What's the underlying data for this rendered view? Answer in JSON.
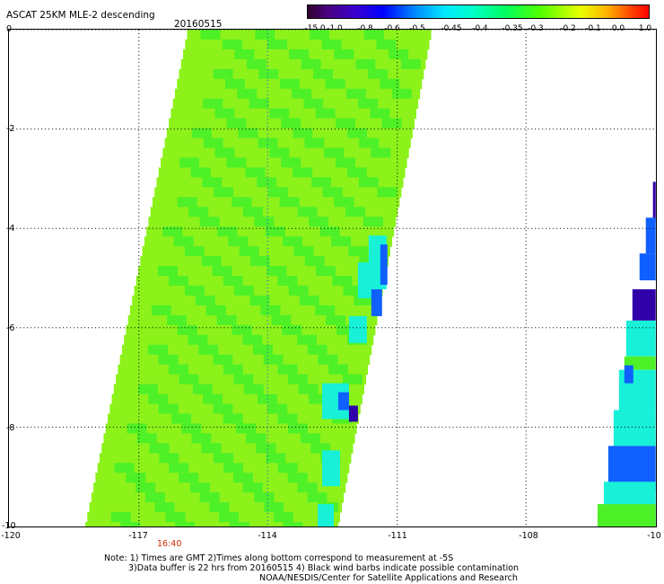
{
  "header": {
    "title": "ASCAT 25KM MLE-2 descending",
    "date": "20160515"
  },
  "colorbar": {
    "labels": [
      "-15.0",
      "-1.0",
      "-0.8",
      "-0.6",
      "-0.5",
      "-0.45",
      "-0.4",
      "-0.35",
      "-0.3",
      "-0.2",
      "-0.1",
      "0.0",
      "1.0"
    ],
    "colors": [
      "#2a0030",
      "#4b0090",
      "#3a00c8",
      "#0000ff",
      "#0080ff",
      "#00c0ff",
      "#00ffff",
      "#00ff90",
      "#20ff40",
      "#80ff00",
      "#e0ff00",
      "#ff8000",
      "#ff0000"
    ]
  },
  "axes": {
    "y_labels": [
      "0",
      "-2",
      "-4",
      "-6",
      "-8",
      "-10"
    ],
    "x_labels": [
      "-120",
      "-117",
      "-114",
      "-111",
      "-108",
      "-10"
    ]
  },
  "time_label": "16:40",
  "notes": {
    "line1": "Note: 1) Times are GMT 2)Times along bottom correspond to measurement at -5S",
    "line2": "3)Data buffer is 22 hrs from 20160515 4) Black wind barbs indicate possible contamination",
    "line3": "NOAA/NESDIS/Center for Satellite Applications and Research"
  },
  "colors": {
    "swath_main": "#8cf21a",
    "swath_mid": "#4ef028",
    "swath_cyan": "#18f0d8",
    "swath_blue": "#1060ff",
    "swath_dark": "#3000a8"
  }
}
